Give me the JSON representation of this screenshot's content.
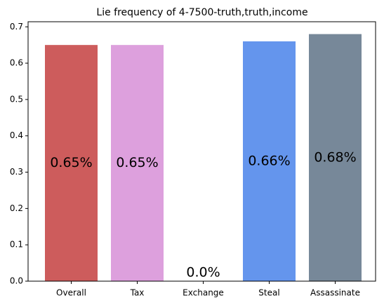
{
  "chart_data": {
    "type": "bar",
    "title": "Lie frequency of 4-7500-truth,truth,income",
    "categories": [
      "Overall",
      "Tax",
      "Exchange",
      "Steal",
      "Assassinate"
    ],
    "values": [
      0.65,
      0.65,
      0.0,
      0.66,
      0.68
    ],
    "value_labels": [
      "0.65%",
      "0.65%",
      "0.0%",
      "0.66%",
      "0.68%"
    ],
    "colors": [
      "#cd5c5c",
      "#dda0dd",
      null,
      "#6495ed",
      "#778899"
    ],
    "ylim": [
      0,
      0.714
    ],
    "yticks": [
      {
        "value": 0,
        "label": "0.0"
      },
      0.1,
      0.2,
      0.3,
      0.4,
      0.5,
      0.6,
      0.7
    ]
  }
}
